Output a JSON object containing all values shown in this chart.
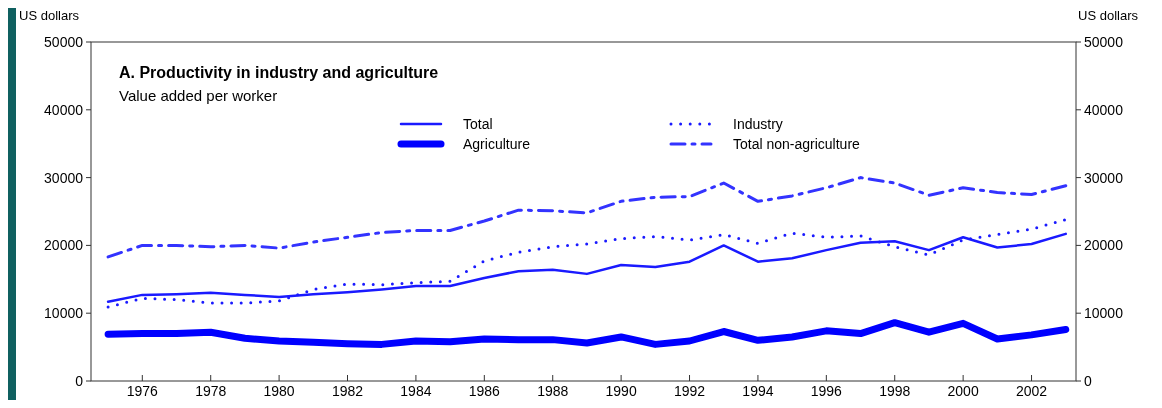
{
  "chart_data": {
    "type": "line",
    "title": "A. Productivity in industry and agriculture",
    "subtitle": "Value added per worker",
    "ylabel": "US dollars",
    "y2label": "US dollars",
    "x": [
      1975,
      1976,
      1977,
      1978,
      1979,
      1980,
      1981,
      1982,
      1983,
      1984,
      1985,
      1986,
      1987,
      1988,
      1989,
      1990,
      1991,
      1992,
      1993,
      1994,
      1995,
      1996,
      1997,
      1998,
      1999,
      2000,
      2001,
      2002,
      2003
    ],
    "xlim": [
      1974.5,
      2003.3
    ],
    "xticks": [
      1976,
      1978,
      1980,
      1982,
      1984,
      1986,
      1988,
      1990,
      1992,
      1994,
      1996,
      1998,
      2000,
      2002
    ],
    "ylim": [
      0,
      50000
    ],
    "yticks": [
      0,
      10000,
      20000,
      30000,
      40000,
      50000
    ],
    "y2lim": [
      0,
      50000
    ],
    "y2ticks": [
      0,
      10000,
      20000,
      30000,
      40000,
      50000
    ],
    "grid": false,
    "legend": "top",
    "series": [
      {
        "name": "Total",
        "color": "#1a1aff",
        "line_style": "solid",
        "values": [
          11700,
          12700,
          12800,
          13000,
          12700,
          12400,
          12800,
          13100,
          13500,
          14000,
          14000,
          15200,
          16200,
          16400,
          15800,
          17100,
          16800,
          17600,
          20000,
          17600,
          18100,
          19300,
          20400,
          20600,
          19300,
          21200,
          19700,
          20200,
          21700
        ]
      },
      {
        "name": "Agriculture",
        "color": "#0000ff",
        "line_style": "solid",
        "values": [
          6900,
          7000,
          7000,
          7200,
          6300,
          5900,
          5700,
          5500,
          5400,
          5900,
          5800,
          6200,
          6100,
          6100,
          5600,
          6500,
          5400,
          5900,
          7300,
          6000,
          6500,
          7400,
          7000,
          8600,
          7200,
          8500,
          6200,
          6800,
          7600
        ]
      },
      {
        "name": "Industry",
        "color": "#1a1aff",
        "line_style": "dotted",
        "values": [
          10900,
          12200,
          12000,
          11500,
          11500,
          11800,
          13500,
          14300,
          14200,
          14500,
          14700,
          17700,
          19000,
          19800,
          20200,
          21000,
          21300,
          20800,
          21600,
          20300,
          21800,
          21200,
          21400,
          19800,
          18600,
          20800,
          21600,
          22400,
          23800
        ]
      },
      {
        "name": "Total non-agriculture",
        "color": "#3333ff",
        "line_style": "dashed",
        "values": [
          18300,
          20000,
          20000,
          19800,
          20000,
          19600,
          20500,
          21200,
          21900,
          22200,
          22200,
          23600,
          25200,
          25100,
          24800,
          26500,
          27100,
          27200,
          29200,
          26500,
          27300,
          28500,
          30000,
          29200,
          27400,
          28500,
          27800,
          27500,
          28800
        ]
      }
    ]
  }
}
